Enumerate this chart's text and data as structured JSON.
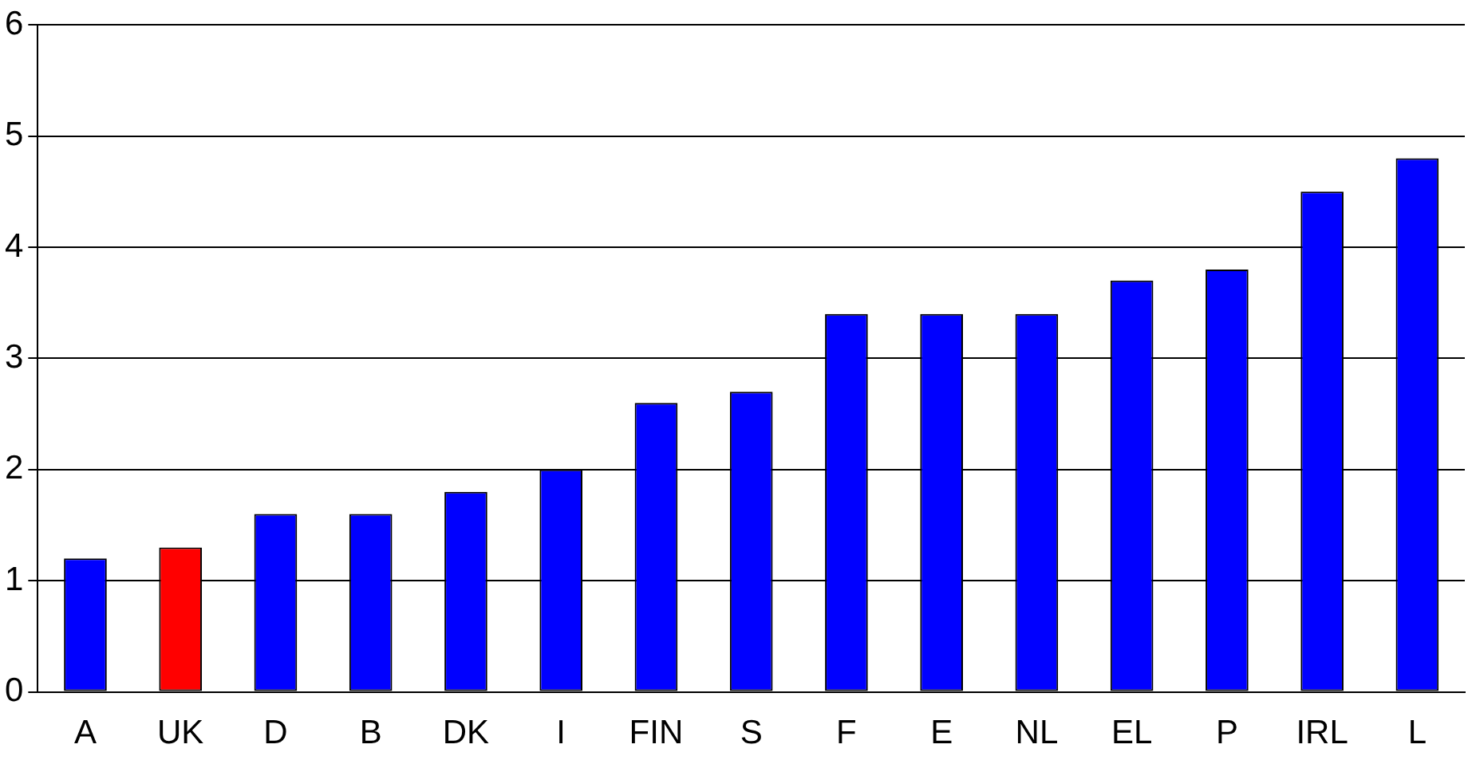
{
  "chart_data": {
    "type": "bar",
    "categories": [
      "A",
      "UK",
      "D",
      "B",
      "DK",
      "I",
      "FIN",
      "S",
      "F",
      "E",
      "NL",
      "EL",
      "P",
      "IRL",
      "L"
    ],
    "values": [
      1.2,
      1.3,
      1.6,
      1.6,
      1.8,
      2.0,
      2.6,
      2.7,
      3.4,
      3.4,
      3.4,
      3.7,
      3.8,
      4.5,
      4.8
    ],
    "colors": [
      "#0000ff",
      "#ff0000",
      "#0000ff",
      "#0000ff",
      "#0000ff",
      "#0000ff",
      "#0000ff",
      "#0000ff",
      "#0000ff",
      "#0000ff",
      "#0000ff",
      "#0000ff",
      "#0000ff",
      "#0000ff",
      "#0000ff"
    ],
    "ylim": [
      0,
      6
    ],
    "yticks": [
      0,
      1,
      2,
      3,
      4,
      5,
      6
    ],
    "grid": "y",
    "legend": false
  }
}
